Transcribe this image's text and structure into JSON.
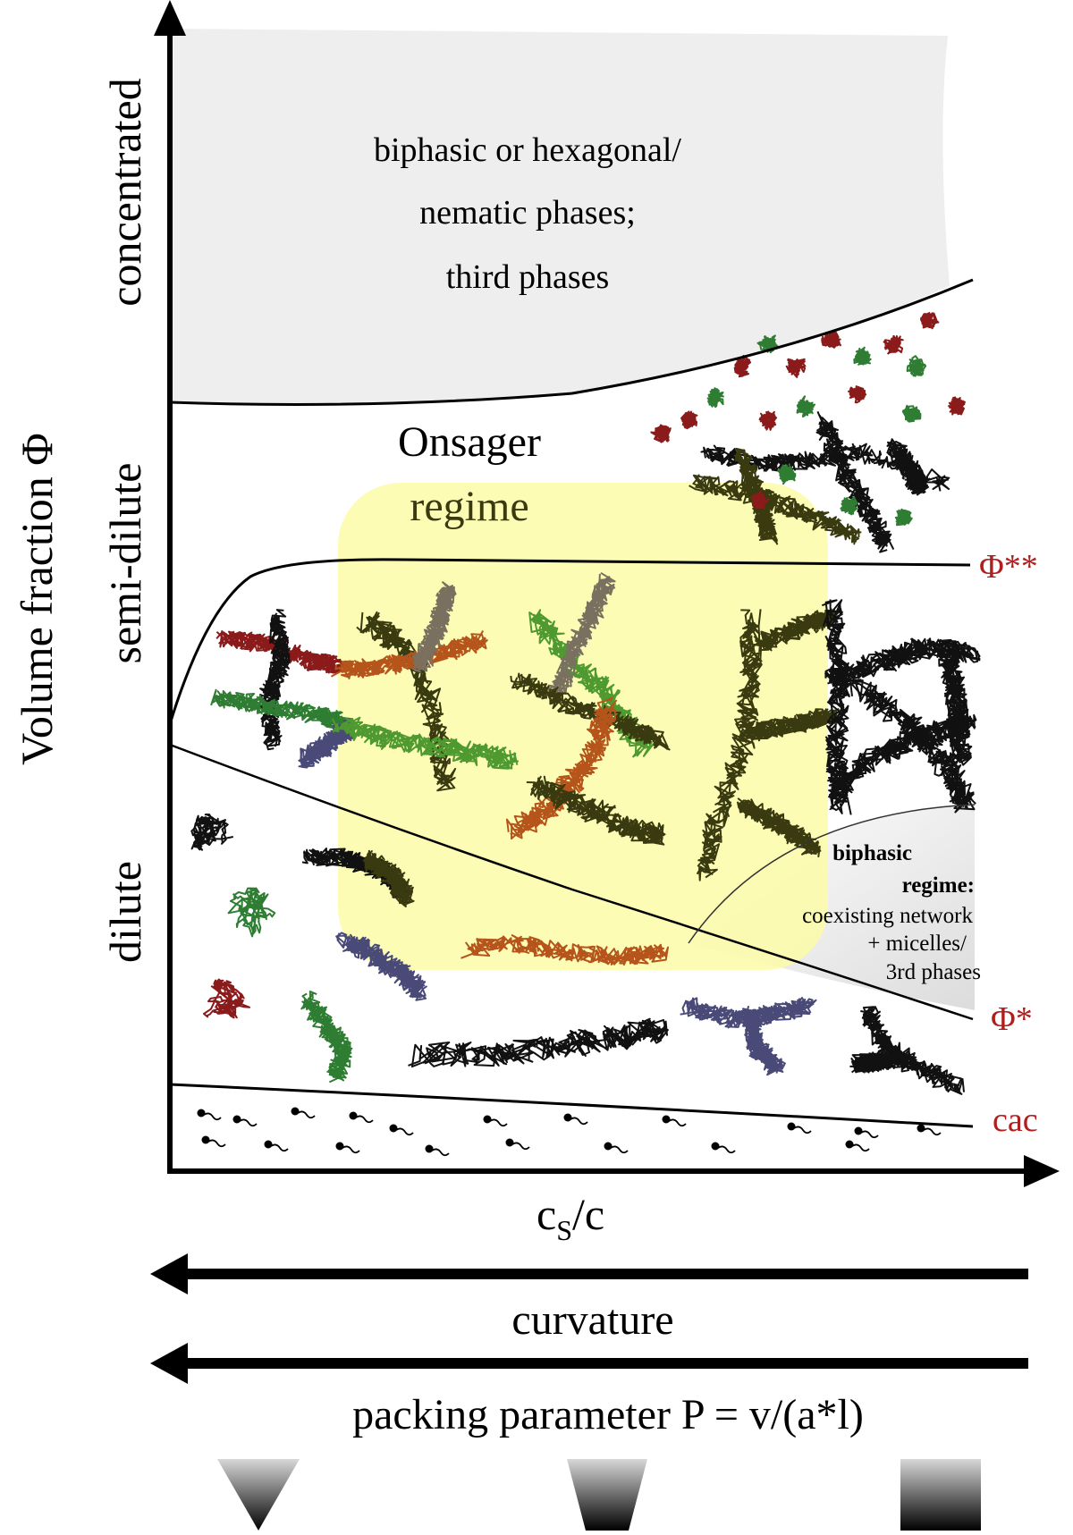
{
  "axes": {
    "y_label": "Volume fraction Φ",
    "x_label_main": "c",
    "x_label_sub": "S",
    "x_label_tail": "/c"
  },
  "regions": {
    "concentrated": "concentrated",
    "semi_dilute": "semi-dilute",
    "dilute": "dilute"
  },
  "top_phase_text": [
    "biphasic or hexagonal/",
    "nematic phases;",
    "third phases"
  ],
  "onsager": [
    "Onsager",
    "regime"
  ],
  "biphasic": {
    "title_1": "biphasic",
    "title_2": "regime:",
    "line_1": "coexisting network",
    "line_2": "+ micelles/",
    "line_3": "3rd phases"
  },
  "boundaries": {
    "phi_double": "Φ**",
    "phi_single": "Φ*",
    "cac": "cac"
  },
  "bottom": {
    "curvature": "curvature",
    "packing": "packing parameter P = v/(a*l)"
  },
  "colors": {
    "axis": "#000000",
    "boundary_label": "#b01e1e",
    "concentrated_fill": "#eeeeee",
    "onsager_highlight": "#fbfba8",
    "micelle_red": "#8b1a1a",
    "micelle_green": "#2e7d32",
    "micelle_black": "#111111",
    "micelle_olive": "#3a3a10",
    "micelle_orange": "#b5541b",
    "micelle_slate": "#4a4a78",
    "micelle_taupe": "#7a7060",
    "micelle_lightgreen": "#4f9a30"
  },
  "icons": [
    "y-axis-arrow-icon",
    "x-axis-arrow-icon",
    "left-arrow-icon",
    "cone-shape-icon",
    "truncated-cone-shape-icon",
    "cylinder-shape-icon",
    "surfactant-monomer-icon"
  ]
}
